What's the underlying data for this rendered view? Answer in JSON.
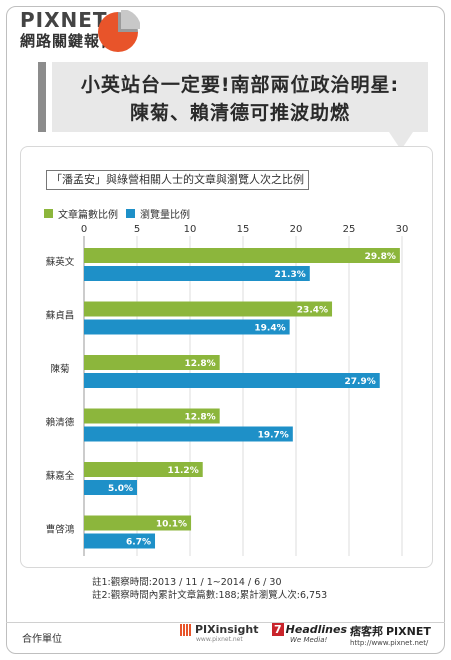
{
  "brand": {
    "name": "PIXNET",
    "report": "網路關鍵報告"
  },
  "headline": {
    "line1": "小英站台一定要!南部兩位政治明星:",
    "line2": "陳菊、賴清德可推波助燃"
  },
  "colors": {
    "green": "#8cb63c",
    "blue": "#1e90c8",
    "accent": "#e8542a",
    "title_bg": "#e8e8e8"
  },
  "chart_data": {
    "type": "bar",
    "orientation": "horizontal",
    "title": "「潘孟安」與綠營相關人士的文章與瀏覽人次之比例",
    "categories": [
      "蘇英文",
      "蘇貞昌",
      "陳菊",
      "賴清德",
      "蘇嘉全",
      "曹啓鴻"
    ],
    "series": [
      {
        "name": "文章篇數比例",
        "color": "#8cb63c",
        "values": [
          29.8,
          23.4,
          12.8,
          12.8,
          11.2,
          10.1
        ],
        "labels": [
          "29.8%",
          "23.4%",
          "12.8%",
          "12.8%",
          "11.2%",
          "10.1%"
        ]
      },
      {
        "name": "瀏覽量比例",
        "color": "#1e90c8",
        "values": [
          21.3,
          19.4,
          27.9,
          19.7,
          5.0,
          6.7
        ],
        "labels": [
          "21.3%",
          "19.4%",
          "27.9%",
          "19.7%",
          "5.0%",
          "6.7%"
        ]
      }
    ],
    "xlim": [
      0,
      30
    ],
    "ticks": [
      "0",
      "5",
      "10",
      "15",
      "20",
      "25",
      "30"
    ],
    "grid": true,
    "legend": "top-left"
  },
  "notes": {
    "n1": "註1:觀察時間:2013 / 11 / 1~2014 / 6 / 30",
    "n2": "註2:觀察時間內累計文章篇數:188;累計瀏覽人次:6,753"
  },
  "footer": {
    "coop": "合作單位",
    "pixinsight": "PIXinsight",
    "pixinsight_url": "www.pixnet.net",
    "headlines": "Headlines",
    "headlines_num": "7",
    "headlines_tag": "We Media!",
    "pixnet_cn": "痞客邦",
    "pixnet": "PIXNET",
    "pixnet_url": "http://www.pixnet.net/"
  }
}
